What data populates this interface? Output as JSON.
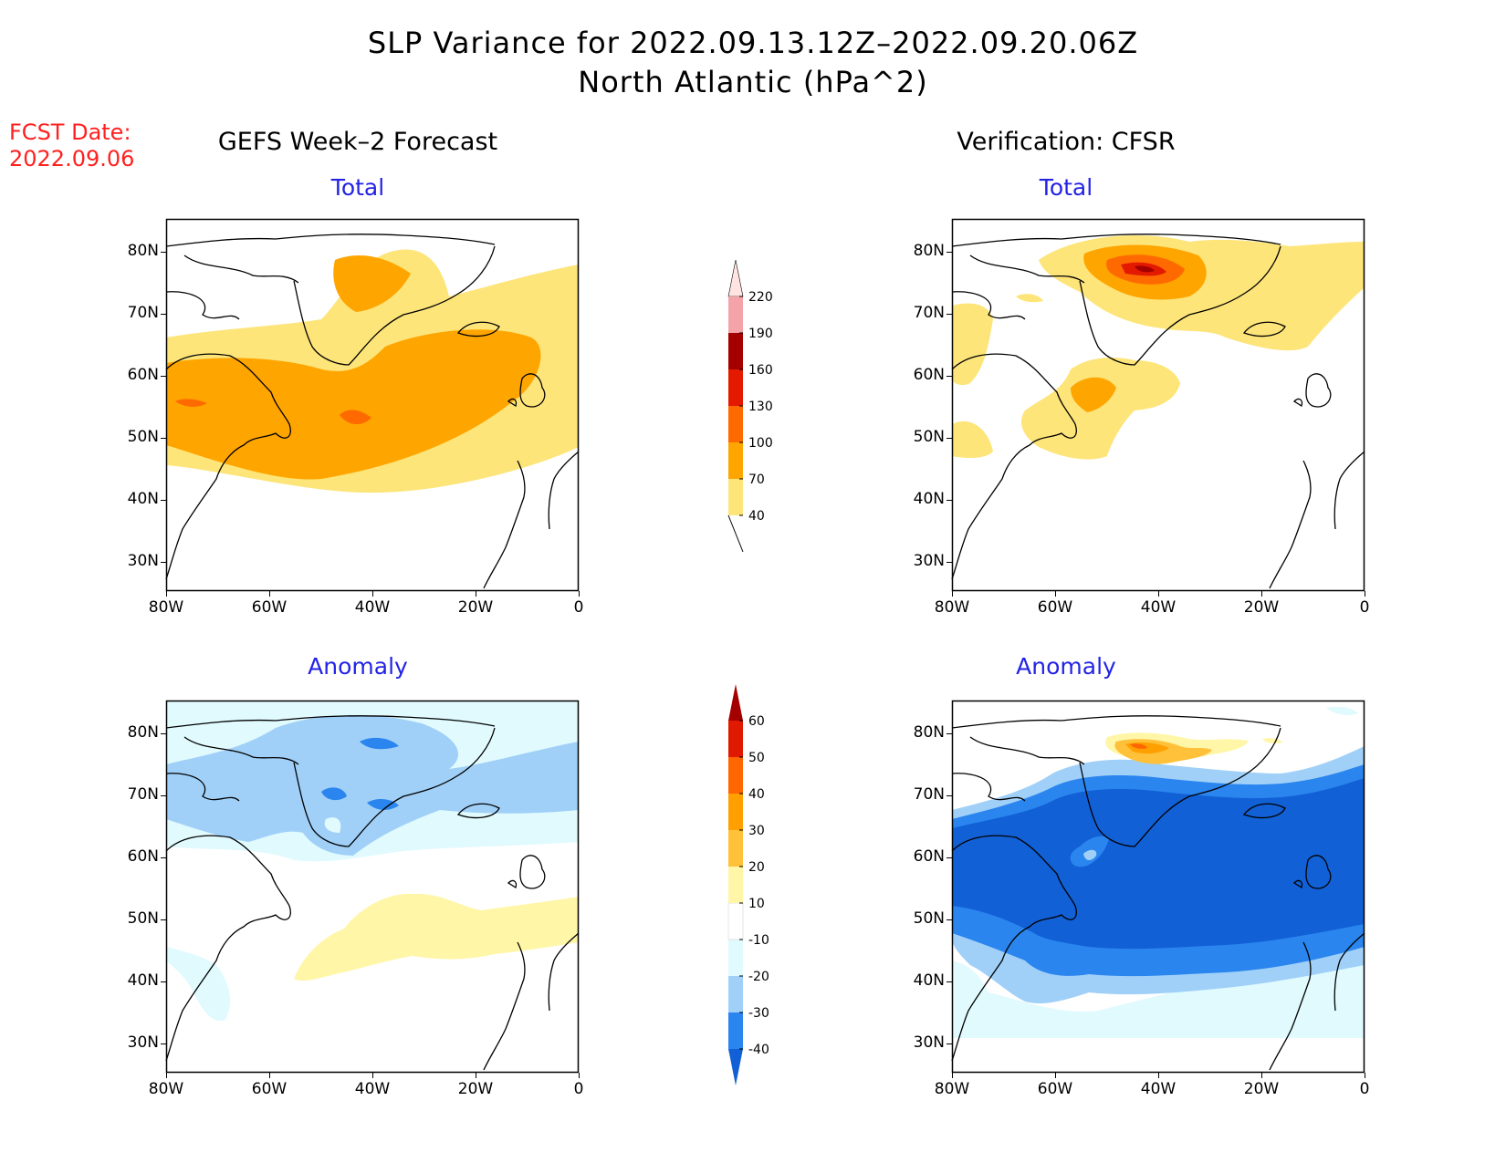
{
  "header": {
    "title_line1": "SLP Variance for 2022.09.13.12Z–2022.09.20.06Z",
    "title_line2": "North Atlantic (hPa^2)"
  },
  "fcst": {
    "label": "FCST Date:",
    "date": "2022.09.06"
  },
  "columns": {
    "left_title": "GEFS Week–2 Forecast",
    "right_title": "Verification: CFSR"
  },
  "panels": {
    "total_label": "Total",
    "anomaly_label": "Anomaly"
  },
  "axes": {
    "lat_ticks": [
      "80N",
      "70N",
      "60N",
      "50N",
      "40N",
      "30N"
    ],
    "lon_ticks": [
      "80W",
      "60W",
      "40W",
      "20W",
      "0"
    ]
  },
  "colorbars": {
    "total": {
      "levels": [
        "40",
        "70",
        "100",
        "130",
        "160",
        "190",
        "220"
      ],
      "colors": [
        "#fde57a",
        "#ffa500",
        "#ff6a00",
        "#e31a00",
        "#a50000",
        "#f4a3a8",
        "#ffe4e1"
      ]
    },
    "anomaly": {
      "levels": [
        "-40",
        "-30",
        "-20",
        "-10",
        "10",
        "20",
        "30",
        "40",
        "50",
        "60"
      ],
      "colors": [
        "#1260d6",
        "#2a85ee",
        "#a0d0f8",
        "#e0fafe",
        "#ffffff",
        "#fff6a8",
        "#ffc13a",
        "#ffa000",
        "#ff6500",
        "#e01a00",
        "#a50000"
      ]
    }
  }
}
